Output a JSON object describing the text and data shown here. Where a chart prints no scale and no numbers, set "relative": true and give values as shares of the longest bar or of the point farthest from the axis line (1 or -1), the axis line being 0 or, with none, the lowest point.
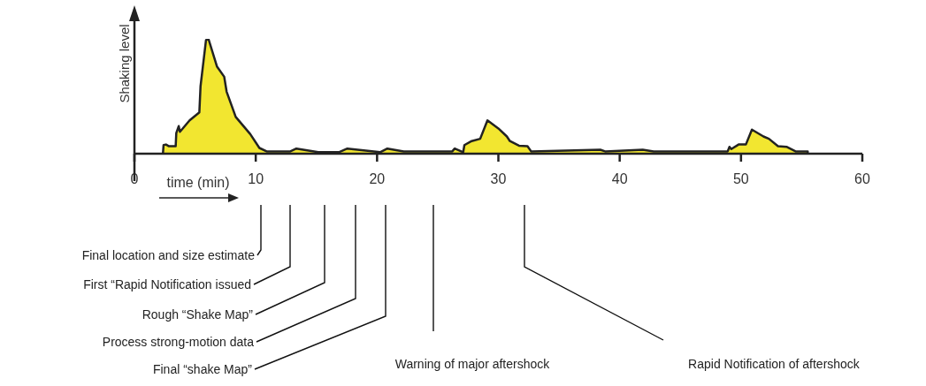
{
  "chart_data": {
    "type": "area",
    "relative": true,
    "ylabel": "Shaking level",
    "xlabel": "time (min)",
    "color": "#f2e630",
    "x": [
      2.35,
      2.4,
      2.6,
      2.85,
      3.4,
      3.45,
      3.65,
      3.75,
      4.55,
      5.35,
      5.45,
      5.9,
      6.1,
      6.8,
      7.4,
      7.6,
      8.35,
      9.55,
      10.3,
      10.9,
      12.85,
      13.35,
      15.15,
      16.85,
      17.55,
      20.25,
      20.85,
      22.2,
      26.2,
      26.4,
      27.1,
      27.2,
      27.8,
      28.5,
      29.1,
      30.0,
      30.7,
      30.95,
      31.7,
      32.4,
      32.7,
      38.4,
      38.8,
      41.9,
      42.8,
      48.9,
      49.05,
      49.2,
      49.8,
      50.4,
      50.9,
      51.85,
      52.3,
      53.05,
      53.75,
      54.5,
      55.5,
      55.5
    ],
    "values": [
      0,
      0.075,
      0.08,
      0.065,
      0.065,
      0.18,
      0.24,
      0.19,
      0.29,
      0.36,
      0.59,
      0.99,
      1,
      0.76,
      0.67,
      0.54,
      0.32,
      0.17,
      0.05,
      0.02,
      0.02,
      0.045,
      0.013,
      0.013,
      0.045,
      0.013,
      0.045,
      0.02,
      0.02,
      0.045,
      0.013,
      0.075,
      0.11,
      0.13,
      0.29,
      0.22,
      0.15,
      0.11,
      0.07,
      0.065,
      0.02,
      0.035,
      0.02,
      0.035,
      0.02,
      0.02,
      0.06,
      0.04,
      0.08,
      0.08,
      0.21,
      0.15,
      0.13,
      0.065,
      0.06,
      0.02,
      0.02,
      0
    ],
    "xlim": [
      0,
      60
    ],
    "xticks": [
      0,
      10,
      20,
      30,
      40,
      50,
      60
    ],
    "grid": false,
    "legend": false,
    "annotations": [
      "Final location and size estimate",
      "First “Rapid Notification issued",
      "Rough “Shake Map”",
      "Process strong-motion data",
      "Final “shake Map”",
      "Warning of major aftershock",
      "Rapid Notification of aftershock"
    ]
  }
}
